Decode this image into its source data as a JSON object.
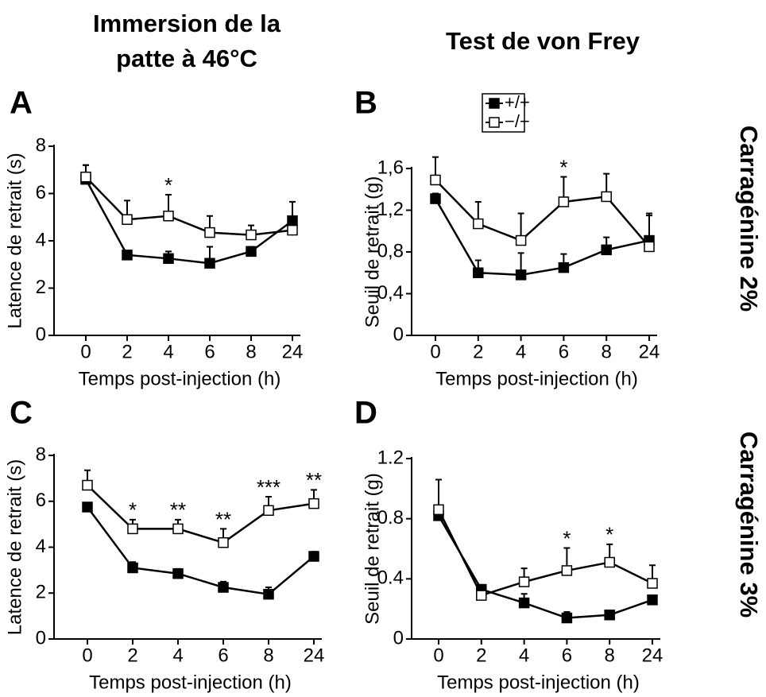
{
  "headers": [
    [
      "Immersion de la",
      "patte à 46°C"
    ],
    [
      "Test de von Frey"
    ]
  ],
  "row_labels": [
    "Carragénine 2%",
    "Carragénine 3%"
  ],
  "chart_data": [
    {
      "type": "line",
      "label": "A",
      "categories": [
        "0",
        "2",
        "4",
        "6",
        "8",
        "24"
      ],
      "x_label": "Temps post-injection (h)",
      "y_label": "Latence de retrait (s)",
      "ylim": [
        0,
        8
      ],
      "yticks": [
        0,
        2,
        4,
        6,
        8
      ],
      "series": [
        {
          "name": "+/+",
          "color": "#000000",
          "marker_fill": "#000000",
          "values": [
            6.6,
            3.4,
            3.25,
            3.05,
            3.55,
            4.85
          ],
          "errors": [
            0.6,
            0.15,
            0.3,
            0.7,
            0.2,
            0.8
          ]
        },
        {
          "name": "−/−",
          "color": "#000000",
          "marker_fill": "#ffffff",
          "values": [
            6.7,
            4.9,
            5.05,
            4.35,
            4.25,
            4.45
          ],
          "errors": [
            0.5,
            0.8,
            0.9,
            0.7,
            0.4,
            0.2
          ]
        }
      ],
      "annotations": [
        null,
        null,
        "*",
        null,
        null,
        null
      ]
    },
    {
      "type": "line",
      "label": "B",
      "categories": [
        "0",
        "2",
        "4",
        "6",
        "8",
        "24"
      ],
      "x_label": "Temps post-injection (h)",
      "y_label": "Seuil de retrait (g)",
      "ylim": [
        0,
        1.6
      ],
      "yticks": [
        0,
        {
          "value": 0.4,
          "label": "0,4"
        },
        {
          "value": 0.8,
          "label": "0,8"
        },
        {
          "value": 1.2,
          "label": "1,2"
        },
        {
          "value": 1.6,
          "label": "1,6"
        }
      ],
      "legend": true,
      "series": [
        {
          "name": "+/+",
          "color": "#000000",
          "marker_fill": "#000000",
          "values": [
            1.31,
            0.6,
            0.58,
            0.65,
            0.82,
            0.91
          ],
          "errors": [
            0.05,
            0.12,
            0.21,
            0.13,
            0.12,
            0.26
          ]
        },
        {
          "name": "−/−",
          "color": "#000000",
          "marker_fill": "#ffffff",
          "values": [
            1.49,
            1.07,
            0.91,
            1.28,
            1.33,
            0.85
          ],
          "errors": [
            0.22,
            0.21,
            0.26,
            0.24,
            0.22,
            0.3
          ]
        }
      ],
      "annotations": [
        null,
        null,
        null,
        "*",
        null,
        null
      ]
    },
    {
      "type": "line",
      "label": "C",
      "categories": [
        "0",
        "2",
        "4",
        "6",
        "8",
        "24"
      ],
      "x_label": "Temps post-injection (h)",
      "y_label": "Latence de retrait (s)",
      "ylim": [
        0,
        8
      ],
      "yticks": [
        0,
        2,
        4,
        6,
        8
      ],
      "series": [
        {
          "name": "+/+",
          "color": "#000000",
          "marker_fill": "#000000",
          "values": [
            5.75,
            3.1,
            2.85,
            2.25,
            1.95,
            3.6
          ],
          "errors": [
            0.15,
            0.25,
            0.2,
            0.25,
            0.3,
            0.2
          ]
        },
        {
          "name": "−/−",
          "color": "#000000",
          "marker_fill": "#ffffff",
          "values": [
            6.7,
            4.8,
            4.8,
            4.2,
            5.6,
            5.9
          ],
          "errors": [
            0.65,
            0.4,
            0.4,
            0.6,
            0.6,
            0.6
          ]
        }
      ],
      "annotations": [
        null,
        "*",
        "**",
        "**",
        "***",
        "**"
      ]
    },
    {
      "type": "line",
      "label": "D",
      "categories": [
        "0",
        "2",
        "4",
        "6",
        "8",
        "24"
      ],
      "x_label": "Temps post-injection (h)",
      "y_label": "Seuil de retrait (g)",
      "ylim": [
        0,
        1.2
      ],
      "yticks": [
        0,
        0.4,
        0.8,
        1.2
      ],
      "series": [
        {
          "name": "+/+",
          "color": "#000000",
          "marker_fill": "#000000",
          "values": [
            0.82,
            0.33,
            0.24,
            0.14,
            0.16,
            0.26
          ],
          "errors": [
            0.02,
            0.03,
            0.06,
            0.04,
            0.02,
            0.03
          ]
        },
        {
          "name": "−/−",
          "color": "#000000",
          "marker_fill": "#ffffff",
          "values": [
            0.86,
            0.29,
            0.38,
            0.455,
            0.51,
            0.37
          ],
          "errors": [
            0.2,
            0.02,
            0.09,
            0.15,
            0.12,
            0.12
          ]
        }
      ],
      "annotations": [
        null,
        null,
        null,
        "*",
        "*",
        null
      ]
    }
  ]
}
